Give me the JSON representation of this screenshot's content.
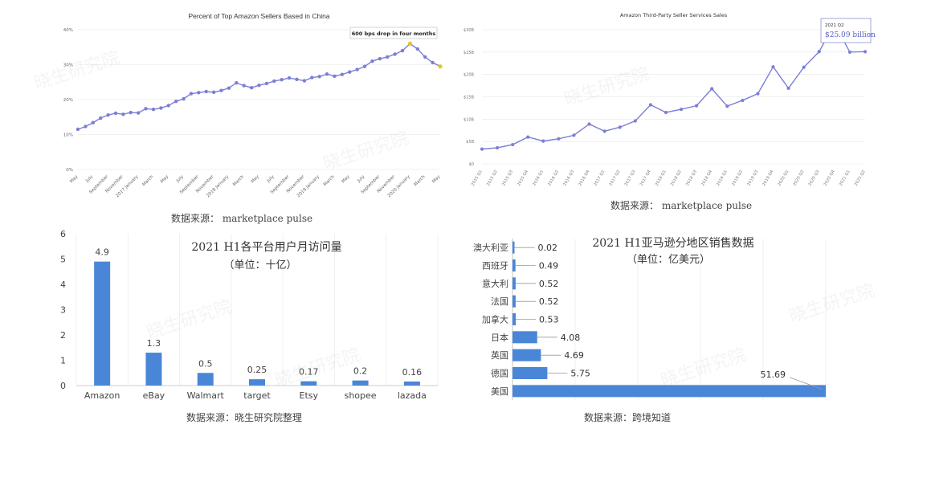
{
  "watermark": "晓生研究院",
  "colors": {
    "line_purple": "#7b7fd4",
    "highlight_yellow": "#e8c02f",
    "bar_blue": "#4a86d8",
    "grid": "#e6e6e6"
  },
  "chart_data": [
    {
      "type": "line",
      "title": "Percent of Top Amazon Sellers Based in China",
      "annotation": "600 bps drop in four months",
      "y_tick_labels": [
        "0%",
        "10%",
        "20%",
        "30%",
        "40%"
      ],
      "ylim": [
        0,
        40
      ],
      "x_tick_labels": [
        "May",
        "July",
        "September",
        "November",
        "2017 January",
        "March",
        "May",
        "July",
        "September",
        "November",
        "2018 January",
        "March",
        "May",
        "July",
        "September",
        "November",
        "2019 January",
        "March",
        "May",
        "July",
        "September",
        "November",
        "2020 January",
        "March",
        "May"
      ],
      "values": [
        11.5,
        12.3,
        13.4,
        14.7,
        15.6,
        16.1,
        15.8,
        16.3,
        16.2,
        17.4,
        17.2,
        17.6,
        18.3,
        19.5,
        20.2,
        21.7,
        22.0,
        22.3,
        22.1,
        22.6,
        23.3,
        24.8,
        24.0,
        23.4,
        24.1,
        24.6,
        25.3,
        25.7,
        26.2,
        25.8,
        25.4,
        26.3,
        26.6,
        27.3,
        26.7,
        27.2,
        27.9,
        28.6,
        29.5,
        31.0,
        31.7,
        32.2,
        33.0,
        34.0,
        36.0,
        34.5,
        32.2,
        30.6,
        29.5
      ],
      "highlight_indices": [
        44,
        48
      ],
      "source": "数据来源： marketplace pulse"
    },
    {
      "type": "line",
      "title": "Amazon Third-Party Seller Services Sales",
      "tooltip_period": "2021 Q2",
      "tooltip_value": "$25.09 billion",
      "y_tick_labels": [
        "$0",
        "$5B",
        "$10B",
        "$15B",
        "$20B",
        "$25B",
        "$30B"
      ],
      "ylim": [
        0,
        30
      ],
      "x_tick_labels": [
        "2015 Q1",
        "2015 Q2",
        "2015 Q3",
        "2015 Q4",
        "2016 Q1",
        "2016 Q2",
        "2016 Q3",
        "2016 Q4",
        "2017 Q1",
        "2017 Q2",
        "2017 Q3",
        "2017 Q4",
        "2018 Q1",
        "2018 Q2",
        "2018 Q3",
        "2018 Q4",
        "2019 Q1",
        "2019 Q2",
        "2019 Q3",
        "2019 Q4",
        "2020 Q1",
        "2020 Q2",
        "2020 Q3",
        "2020 Q4",
        "2021 Q1",
        "2021 Q2"
      ],
      "values": [
        3.3,
        3.6,
        4.3,
        6.0,
        5.1,
        5.6,
        6.4,
        8.9,
        7.3,
        8.2,
        9.6,
        13.2,
        11.5,
        12.2,
        13.0,
        16.8,
        12.9,
        14.2,
        15.7,
        21.7,
        16.9,
        21.6,
        25.1,
        31.4,
        25.0,
        25.09
      ],
      "source": "数据来源： marketplace pulse"
    },
    {
      "type": "bar",
      "title": "2021 H1各平台用户月访问量",
      "subtitle": "（单位：十亿）",
      "categories": [
        "Amazon",
        "eBay",
        "Walmart",
        "target",
        "Etsy",
        "shopee",
        "lazada"
      ],
      "values": [
        4.9,
        1.3,
        0.5,
        0.25,
        0.17,
        0.2,
        0.16
      ],
      "value_labels": [
        "4.9",
        "1.3",
        "0.5",
        "0.25",
        "0.17",
        "0.2",
        "0.16"
      ],
      "y_tick_labels": [
        "0",
        "1",
        "2",
        "3",
        "4",
        "5",
        "6"
      ],
      "ylim": [
        0,
        6
      ],
      "source": "数据来源：晓生研究院整理"
    },
    {
      "type": "bar",
      "orientation": "horizontal",
      "title": "2021 H1亚马逊分地区销售数据",
      "subtitle": "（单位：亿美元）",
      "categories": [
        "澳大利亚",
        "西班牙",
        "意大利",
        "法国",
        "加拿大",
        "日本",
        "英国",
        "德国",
        "美国"
      ],
      "values": [
        0.02,
        0.49,
        0.52,
        0.52,
        0.53,
        4.08,
        4.69,
        5.75,
        51.69
      ],
      "value_labels": [
        "0.02",
        "0.49",
        "0.52",
        "0.52",
        "0.53",
        "4.08",
        "4.69",
        "5.75",
        "51.69"
      ],
      "source": "数据来源：跨境知道"
    }
  ]
}
